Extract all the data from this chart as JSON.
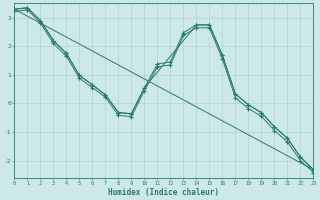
{
  "xlabel": "Humidex (Indice chaleur)",
  "background_color": "#cde8e8",
  "line_color": "#2a7a6a",
  "grid_color": "#aacfcf",
  "xlim": [
    0,
    23
  ],
  "ylim": [
    -2.6,
    3.5
  ],
  "yticks": [
    -2,
    -1,
    0,
    1,
    2,
    3
  ],
  "xticks": [
    0,
    1,
    2,
    3,
    4,
    5,
    6,
    7,
    8,
    9,
    10,
    11,
    12,
    13,
    14,
    15,
    16,
    17,
    18,
    19,
    20,
    21,
    22,
    23
  ],
  "line1_x": [
    0,
    1,
    2,
    3,
    4,
    5,
    6,
    7,
    8,
    9,
    10,
    11,
    12,
    13,
    14,
    15,
    16,
    17,
    18,
    19,
    20,
    21,
    22,
    23
  ],
  "line1_y": [
    3.3,
    3.35,
    2.9,
    2.2,
    1.75,
    0.98,
    0.65,
    0.3,
    -0.32,
    -0.36,
    0.55,
    1.38,
    1.45,
    2.48,
    2.75,
    2.75,
    1.68,
    0.33,
    -0.05,
    -0.32,
    -0.82,
    -1.22,
    -1.88,
    -2.32
  ],
  "line2_x": [
    0,
    1,
    2,
    3,
    4,
    5,
    6,
    7,
    8,
    9,
    10,
    11,
    12,
    13,
    14,
    15,
    16,
    17,
    18,
    19,
    20,
    21,
    22,
    23
  ],
  "line2_y": [
    3.22,
    3.28,
    2.82,
    2.1,
    1.65,
    0.88,
    0.55,
    0.22,
    -0.42,
    -0.46,
    0.45,
    1.28,
    1.35,
    2.38,
    2.65,
    2.65,
    1.55,
    0.2,
    -0.18,
    -0.45,
    -0.95,
    -1.35,
    -2.0,
    -2.42
  ],
  "line3_x": [
    0,
    23
  ],
  "line3_y": [
    3.3,
    -2.32
  ],
  "line4_x": [
    0,
    1,
    2,
    3,
    4,
    5,
    6,
    7,
    8,
    9,
    10,
    14,
    15,
    16,
    17,
    18,
    19,
    20,
    21,
    22,
    23
  ],
  "line4_y": [
    3.3,
    3.35,
    2.9,
    2.2,
    1.75,
    0.98,
    0.65,
    0.3,
    -0.32,
    -0.36,
    0.55,
    2.75,
    2.75,
    1.68,
    0.33,
    -0.05,
    -0.32,
    -0.82,
    -1.22,
    -1.88,
    -2.32
  ]
}
